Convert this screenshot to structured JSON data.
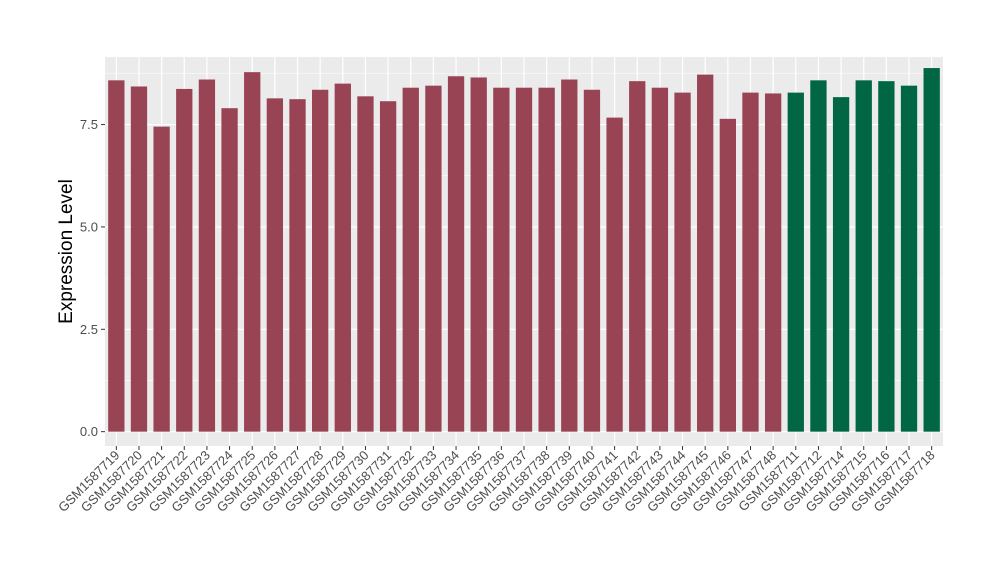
{
  "chart_data": {
    "type": "bar",
    "title": "",
    "xlabel": "",
    "ylabel": "Expression Level",
    "ylim": [
      -0.35,
      9.15
    ],
    "yticks": [
      0.0,
      2.5,
      5.0,
      7.5
    ],
    "ytick_labels": [
      "0.0",
      "2.5",
      "5.0",
      "7.5"
    ],
    "grid": true,
    "legend": "none",
    "colors": {
      "group1": "#994455",
      "group2": "#006644",
      "panel_bg": "#ebebeb",
      "grid": "#ffffff",
      "tick_text": "#4d4d4d"
    },
    "categories": [
      "GSM1587719",
      "GSM1587720",
      "GSM1587721",
      "GSM1587722",
      "GSM1587723",
      "GSM1587724",
      "GSM1587725",
      "GSM1587726",
      "GSM1587727",
      "GSM1587728",
      "GSM1587729",
      "GSM1587730",
      "GSM1587731",
      "GSM1587732",
      "GSM1587733",
      "GSM1587734",
      "GSM1587735",
      "GSM1587736",
      "GSM1587737",
      "GSM1587738",
      "GSM1587739",
      "GSM1587740",
      "GSM1587741",
      "GSM1587742",
      "GSM1587743",
      "GSM1587744",
      "GSM1587745",
      "GSM1587746",
      "GSM1587747",
      "GSM1587748",
      "GSM1587711",
      "GSM1587712",
      "GSM1587714",
      "GSM1587715",
      "GSM1587716",
      "GSM1587717",
      "GSM1587718"
    ],
    "values": [
      8.58,
      8.43,
      7.45,
      8.37,
      8.6,
      7.9,
      8.78,
      8.14,
      8.12,
      8.35,
      8.5,
      8.19,
      8.07,
      8.4,
      8.45,
      8.68,
      8.65,
      8.4,
      8.4,
      8.4,
      8.6,
      8.35,
      7.67,
      8.56,
      8.4,
      8.28,
      8.72,
      7.64,
      8.28,
      8.26,
      8.28,
      8.58,
      8.17,
      8.58,
      8.56,
      8.45,
      8.88
    ],
    "groups": [
      1,
      1,
      1,
      1,
      1,
      1,
      1,
      1,
      1,
      1,
      1,
      1,
      1,
      1,
      1,
      1,
      1,
      1,
      1,
      1,
      1,
      1,
      1,
      1,
      1,
      1,
      1,
      1,
      1,
      1,
      2,
      2,
      2,
      2,
      2,
      2,
      2
    ]
  }
}
